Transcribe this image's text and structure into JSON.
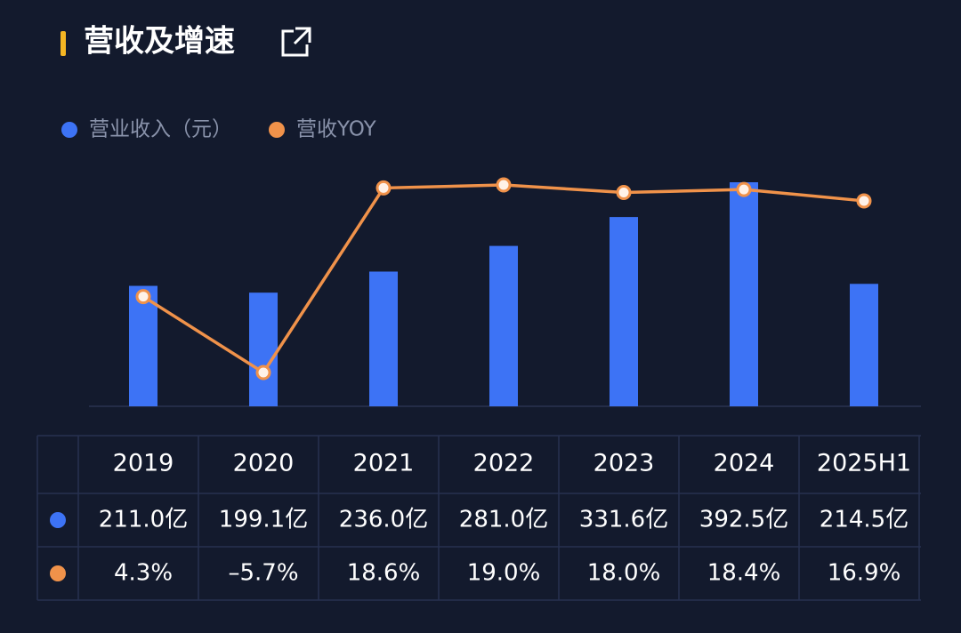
{
  "chart_data": {
    "type": "bar",
    "title": "营收及增速",
    "categories": [
      "2019",
      "2020",
      "2021",
      "2022",
      "2023",
      "2024",
      "2025H1"
    ],
    "series": [
      {
        "name": "营业收入（元）",
        "type": "bar",
        "color": "#3d73f5",
        "values": [
          211.0,
          199.1,
          236.0,
          281.0,
          331.6,
          392.5,
          214.5
        ],
        "value_labels": [
          "211.0亿",
          "199.1亿",
          "236.0亿",
          "281.0亿",
          "331.6亿",
          "392.5亿",
          "214.5亿"
        ]
      },
      {
        "name": "营收YOY",
        "type": "line",
        "color": "#f0924a",
        "values": [
          4.3,
          -5.7,
          18.6,
          19.0,
          18.0,
          18.4,
          16.9
        ],
        "value_labels": [
          "4.3%",
          "–5.7%",
          "18.6%",
          "19.0%",
          "18.0%",
          "18.4%",
          "16.9%"
        ]
      }
    ]
  }
}
